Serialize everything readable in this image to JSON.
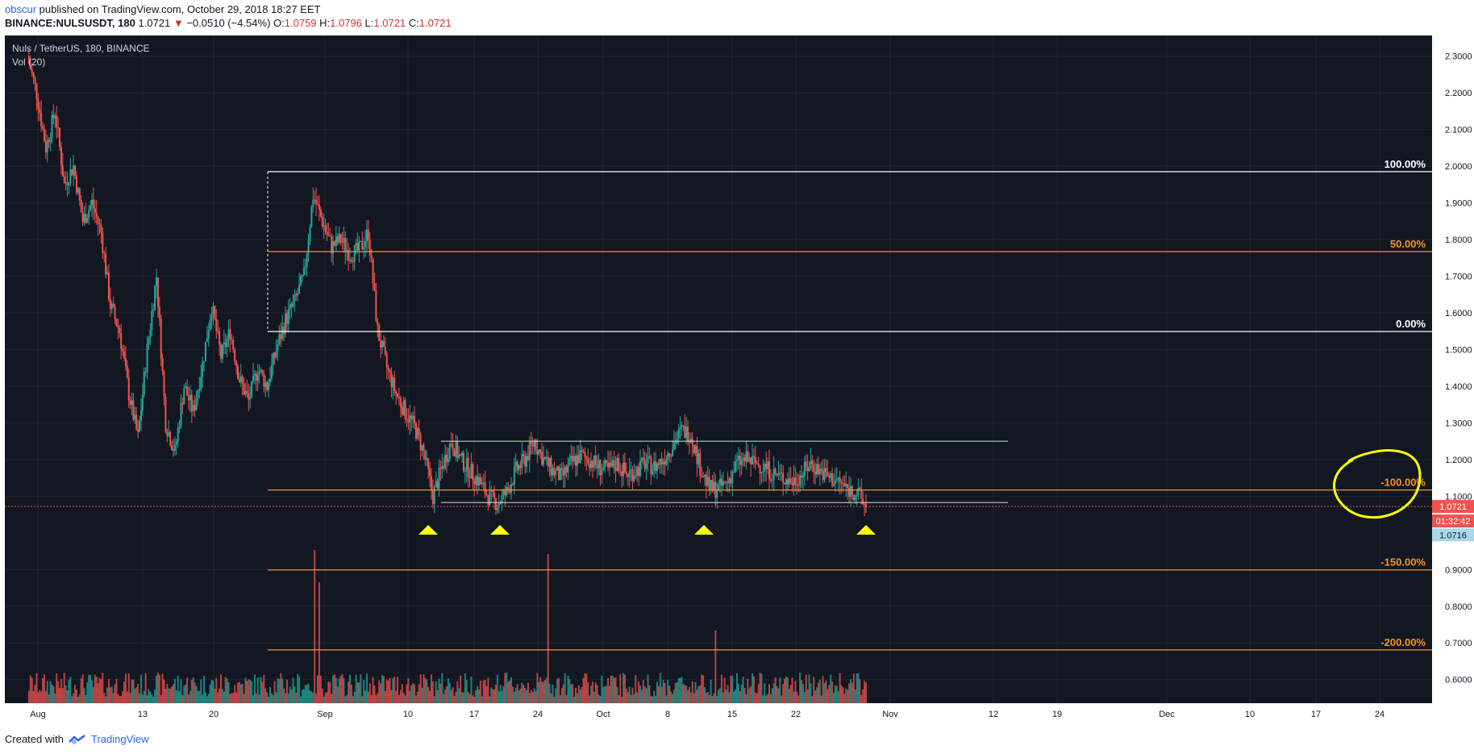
{
  "header": {
    "author": "obscur",
    "published_text": " published on TradingView.com, October 29, 2018 18:27 EET"
  },
  "ticker": {
    "symbol": "BINANCE:NULSUSDT, 180",
    "last": "1.0721",
    "change": "−0.0510 (−4.54%)",
    "o_label": "O:",
    "o": "1.0759",
    "h_label": "H:",
    "h": "1.0796",
    "l_label": "L:",
    "l": "1.0721",
    "c_label": "C:",
    "c": "1.0721"
  },
  "footer": {
    "created_with": "Created with",
    "brand": "TradingView"
  },
  "colors": {
    "background": "#131722",
    "up": "#26a69a",
    "down": "#ef5350",
    "fib": "#f7931a",
    "box": "#ffffff",
    "annotation": "#ffff00"
  },
  "chart_data": {
    "type": "candlestick",
    "title": "Nuls / TetherUS, 180, BINANCE",
    "volume_label": "Vol (20)",
    "ylim": [
      0.54,
      2.33
    ],
    "y_ticks": [
      "2.3000",
      "2.2000",
      "2.1000",
      "2.0000",
      "1.9000",
      "1.8000",
      "1.7000",
      "1.6000",
      "1.5000",
      "1.4000",
      "1.3000",
      "1.2000",
      "1.1000",
      "0.9000",
      "0.8000",
      "0.7000",
      "0.6000"
    ],
    "x_ticks": [
      "Aug",
      "13",
      "20",
      "Sep",
      "10",
      "17",
      "24",
      "Oct",
      "8",
      "15",
      "22",
      "Nov",
      "12",
      "19",
      "Dec",
      "10",
      "17",
      "24"
    ],
    "last_price": "1.0721",
    "countdown": "01:32:42",
    "last_low": "1.0716",
    "price_path": [
      [
        0,
        2.3
      ],
      [
        1,
        2.2
      ],
      [
        2,
        2.05
      ],
      [
        3,
        2.15
      ],
      [
        4,
        1.95
      ],
      [
        5,
        2.0
      ],
      [
        6,
        1.85
      ],
      [
        7,
        1.9
      ],
      [
        8,
        1.82
      ],
      [
        9,
        1.62
      ],
      [
        10,
        1.55
      ],
      [
        11,
        1.38
      ],
      [
        12,
        1.26
      ],
      [
        13,
        1.5
      ],
      [
        14,
        1.7
      ],
      [
        15,
        1.3
      ],
      [
        16,
        1.22
      ],
      [
        17,
        1.4
      ],
      [
        18,
        1.33
      ],
      [
        19,
        1.46
      ],
      [
        20,
        1.62
      ],
      [
        21,
        1.48
      ],
      [
        22,
        1.55
      ],
      [
        23,
        1.42
      ],
      [
        24,
        1.36
      ],
      [
        25,
        1.45
      ],
      [
        26,
        1.4
      ],
      [
        27,
        1.5
      ],
      [
        28,
        1.58
      ],
      [
        29,
        1.63
      ],
      [
        30,
        1.7
      ],
      [
        31,
        1.92
      ],
      [
        32,
        1.85
      ],
      [
        33,
        1.78
      ],
      [
        34,
        1.8
      ],
      [
        35,
        1.76
      ],
      [
        36,
        1.77
      ],
      [
        37,
        1.82
      ],
      [
        38,
        1.55
      ],
      [
        39,
        1.45
      ],
      [
        40,
        1.38
      ],
      [
        41,
        1.33
      ],
      [
        42,
        1.29
      ],
      [
        43,
        1.22
      ],
      [
        44,
        1.1
      ],
      [
        45,
        1.18
      ],
      [
        46,
        1.25
      ],
      [
        47,
        1.2
      ],
      [
        48,
        1.17
      ],
      [
        49,
        1.14
      ],
      [
        50,
        1.1
      ],
      [
        51,
        1.08
      ],
      [
        52,
        1.11
      ],
      [
        53,
        1.17
      ],
      [
        54,
        1.2
      ],
      [
        55,
        1.25
      ],
      [
        56,
        1.2
      ],
      [
        57,
        1.17
      ],
      [
        58,
        1.15
      ],
      [
        59,
        1.19
      ],
      [
        60,
        1.21
      ],
      [
        61,
        1.2
      ],
      [
        62,
        1.18
      ],
      [
        63,
        1.17
      ],
      [
        64,
        1.19
      ],
      [
        65,
        1.16
      ],
      [
        66,
        1.17
      ],
      [
        67,
        1.19
      ],
      [
        68,
        1.18
      ],
      [
        69,
        1.2
      ],
      [
        70,
        1.24
      ],
      [
        71,
        1.28
      ],
      [
        72,
        1.27
      ],
      [
        73,
        1.18
      ],
      [
        74,
        1.12
      ],
      [
        75,
        1.12
      ],
      [
        76,
        1.14
      ],
      [
        77,
        1.19
      ],
      [
        78,
        1.2
      ],
      [
        79,
        1.19
      ],
      [
        80,
        1.18
      ],
      [
        81,
        1.16
      ],
      [
        82,
        1.15
      ],
      [
        83,
        1.14
      ],
      [
        84,
        1.16
      ],
      [
        85,
        1.19
      ],
      [
        86,
        1.17
      ],
      [
        87,
        1.15
      ],
      [
        88,
        1.14
      ],
      [
        89,
        1.12
      ],
      [
        90,
        1.11
      ],
      [
        91,
        1.072
      ]
    ],
    "fib_levels": [
      {
        "label": "100.00%",
        "price": 1.985,
        "color": "#ffffff"
      },
      {
        "label": "50.00%",
        "price": 1.767,
        "color": "#f7931a"
      },
      {
        "label": "0.00%",
        "price": 1.549,
        "color": "#ffffff"
      },
      {
        "label": "-100.00%",
        "price": 1.117,
        "color": "#f7931a"
      },
      {
        "label": "-150.00%",
        "price": 0.899,
        "color": "#f7931a"
      },
      {
        "label": "-200.00%",
        "price": 0.681,
        "color": "#f7931a"
      }
    ],
    "range_lines": [
      1.25,
      1.083
    ]
  }
}
